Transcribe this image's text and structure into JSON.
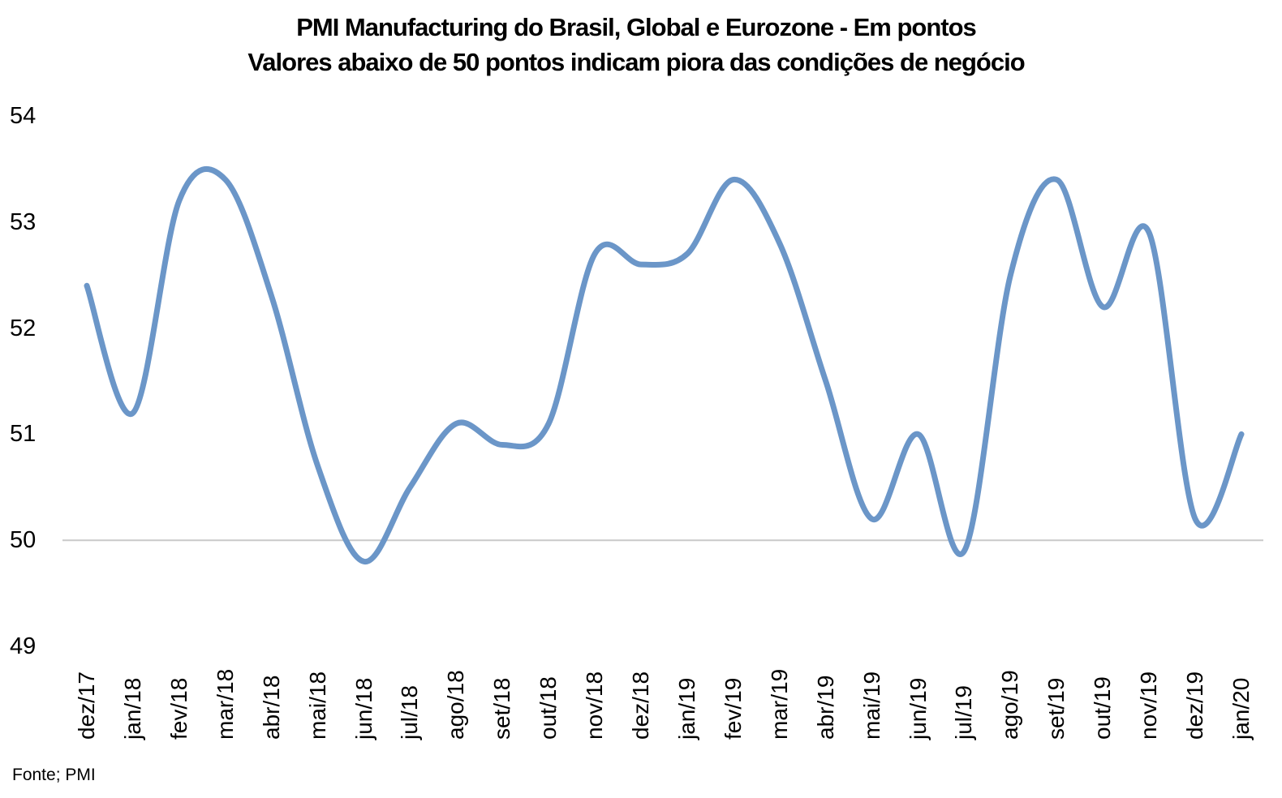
{
  "title": {
    "line1": "PMI Manufacturing do Brasil, Global e Eurozone - Em pontos",
    "line2": "Valores abaixo de 50 pontos indicam piora das condições de negócio"
  },
  "source_note": "Fonte; PMI",
  "colors": {
    "line": "#6B96C8",
    "gridline": "#C9C9C9",
    "text": "#000000",
    "background": "#FFFFFF"
  },
  "chart_data": {
    "type": "line",
    "title": "PMI Manufacturing do Brasil, Global e Eurozone - Em pontos",
    "subtitle": "Valores abaixo de 50 pontos indicam piora das condições de negócio",
    "categories": [
      "dez/17",
      "jan/18",
      "fev/18",
      "mar/18",
      "abr/18",
      "mai/18",
      "jun/18",
      "jul/18",
      "ago/18",
      "set/18",
      "out/18",
      "nov/18",
      "dez/18",
      "jan/19",
      "fev/19",
      "mar/19",
      "abr/19",
      "mai/19",
      "jun/19",
      "jul/19",
      "ago/19",
      "set/19",
      "out/19",
      "nov/19",
      "dez/19",
      "jan/20"
    ],
    "values": [
      52.4,
      51.2,
      53.2,
      53.4,
      52.3,
      50.7,
      49.8,
      50.5,
      51.1,
      50.9,
      51.1,
      52.7,
      52.6,
      52.7,
      53.4,
      52.8,
      51.5,
      50.2,
      51.0,
      49.9,
      52.5,
      53.4,
      52.2,
      52.9,
      50.2,
      51.0
    ],
    "ylim": [
      49,
      54
    ],
    "yticks": [
      54,
      53,
      52,
      51,
      50,
      49
    ],
    "baseline_value": 50,
    "grid": "single horizontal gridline at 50",
    "legend": "none",
    "smooth": true,
    "xlabel": "",
    "ylabel": ""
  }
}
